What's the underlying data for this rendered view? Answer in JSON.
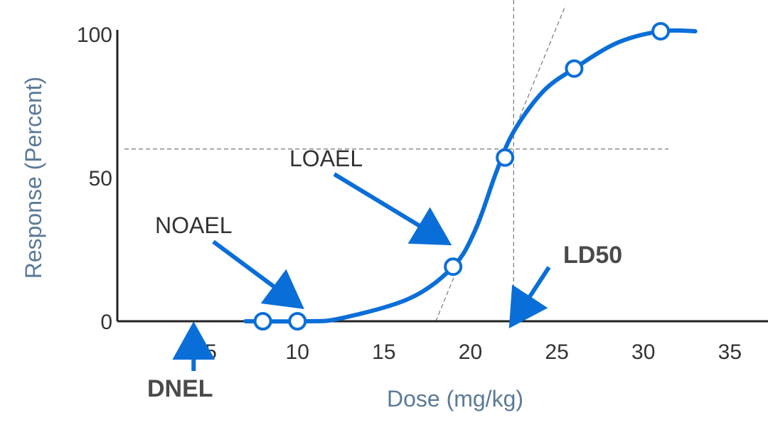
{
  "chart_data": {
    "type": "line",
    "title": "",
    "xlabel": "Dose (mg/kg)",
    "ylabel": "Response (Percent)",
    "xlim": [
      0,
      37
    ],
    "ylim": [
      0,
      100
    ],
    "x_ticks": [
      "5",
      "10",
      "15",
      "20",
      "25",
      "30",
      "35"
    ],
    "y_ticks": [
      "0",
      "50",
      "100"
    ],
    "grid": false,
    "legend": "none",
    "series": [
      {
        "markers": [
          {
            "x": 8,
            "y": 0
          },
          {
            "x": 10,
            "y": 0
          },
          {
            "x": 19,
            "y": 19
          },
          {
            "x": 22,
            "y": 57
          },
          {
            "x": 26,
            "y": 88
          },
          {
            "x": 31,
            "y": 101
          }
        ],
        "curve": [
          {
            "x": 7,
            "y": 0
          },
          {
            "x": 10.5,
            "y": 0
          },
          {
            "x": 12.5,
            "y": 1
          },
          {
            "x": 16.5,
            "y": 8
          },
          {
            "x": 19,
            "y": 19
          },
          {
            "x": 20.3,
            "y": 32
          },
          {
            "x": 21.5,
            "y": 52
          },
          {
            "x": 22.5,
            "y": 66
          },
          {
            "x": 24.2,
            "y": 80
          },
          {
            "x": 26,
            "y": 88
          },
          {
            "x": 28.5,
            "y": 97
          },
          {
            "x": 31,
            "y": 101
          },
          {
            "x": 33,
            "y": 101
          }
        ]
      }
    ],
    "reference_lines": {
      "horizontal_y": 60,
      "vertical_x": 22.5,
      "tangent": [
        {
          "x": 18,
          "y": 0
        },
        {
          "x": 25.5,
          "y": 110
        }
      ]
    },
    "annotations": [
      {
        "label": "NOAEL",
        "arrow_to": {
          "x": 10,
          "y": 6
        }
      },
      {
        "label": "LOAEL",
        "arrow_to": {
          "x": 18.5,
          "y": 28
        }
      },
      {
        "label": "LD50",
        "arrow_to": {
          "x": 22.5,
          "y": 0
        }
      },
      {
        "label": "DNEL",
        "arrow_to": {
          "x": 4,
          "y": 0
        }
      }
    ],
    "colors": {
      "curve": "#0a6ed8",
      "arrow": "#0a6ed8",
      "axis": "#222222",
      "reference": "#777777",
      "axis_title": "#5b7a99"
    }
  }
}
